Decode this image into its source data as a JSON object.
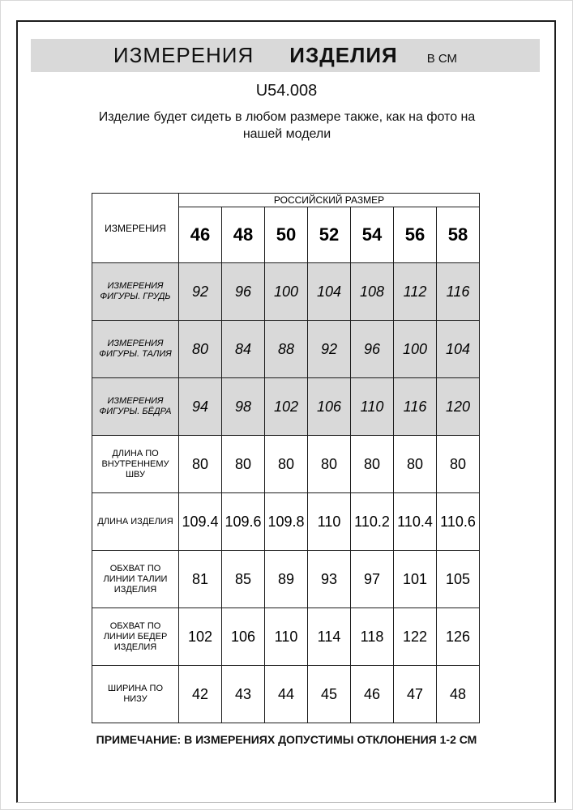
{
  "header": {
    "title_word1": "ИЗМЕРЕНИЯ",
    "title_word2": "ИЗДЕЛИЯ",
    "title_unit": "В СМ",
    "product_code": "U54.008",
    "description": "Изделие будет сидеть в любом размере также, как на фото на нашей модели"
  },
  "table": {
    "corner_header": "ИЗМЕРЕНИЯ",
    "size_group_header": "РОССИЙСКИЙ РАЗМЕР",
    "sizes": [
      "46",
      "48",
      "50",
      "52",
      "54",
      "56",
      "58"
    ],
    "rows": [
      {
        "label": "ИЗМЕРЕНИЯ ФИГУРЫ. ГРУДЬ",
        "shaded": true,
        "values": [
          "92",
          "96",
          "100",
          "104",
          "108",
          "112",
          "116"
        ]
      },
      {
        "label": "ИЗМЕРЕНИЯ ФИГУРЫ. ТАЛИЯ",
        "shaded": true,
        "values": [
          "80",
          "84",
          "88",
          "92",
          "96",
          "100",
          "104"
        ]
      },
      {
        "label": "ИЗМЕРЕНИЯ ФИГУРЫ. БЁДРА",
        "shaded": true,
        "values": [
          "94",
          "98",
          "102",
          "106",
          "110",
          "116",
          "120"
        ]
      },
      {
        "label": "ДЛИНА ПО ВНУТРЕННЕМУ ШВУ",
        "shaded": false,
        "values": [
          "80",
          "80",
          "80",
          "80",
          "80",
          "80",
          "80"
        ]
      },
      {
        "label": "ДЛИНА ИЗДЕЛИЯ",
        "shaded": false,
        "values": [
          "109.4",
          "109.6",
          "109.8",
          "110",
          "110.2",
          "110.4",
          "110.6"
        ]
      },
      {
        "label": "ОБХВАТ ПО ЛИНИИ ТАЛИИ ИЗДЕЛИЯ",
        "shaded": false,
        "values": [
          "81",
          "85",
          "89",
          "93",
          "97",
          "101",
          "105"
        ]
      },
      {
        "label": "ОБХВАТ ПО ЛИНИИ БЕДЕР ИЗДЕЛИЯ",
        "shaded": false,
        "values": [
          "102",
          "106",
          "110",
          "114",
          "118",
          "122",
          "126"
        ]
      },
      {
        "label": "ШИРИНА ПО НИЗУ",
        "shaded": false,
        "values": [
          "42",
          "43",
          "44",
          "45",
          "46",
          "47",
          "48"
        ]
      }
    ]
  },
  "footer": {
    "note": "ПРИМЕЧАНИЕ: В ИЗМЕРЕНИЯХ ДОПУСТИМЫ ОТКЛОНЕНИЯ 1-2 СМ"
  },
  "colors": {
    "banner_bg": "#d9d9d9",
    "shaded_row_bg": "#d9d9d9",
    "border": "#1c1c1c"
  }
}
